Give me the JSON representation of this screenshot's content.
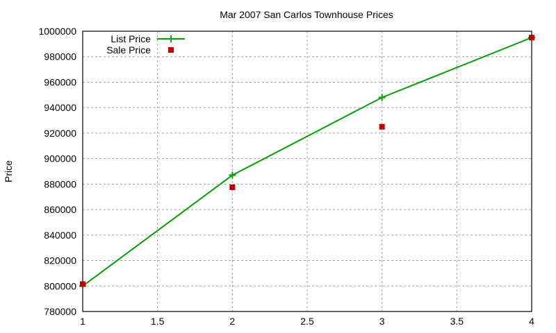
{
  "chart_data": {
    "type": "line",
    "title": "Mar 2007 San Carlos Townhouse Prices",
    "xlabel": "",
    "ylabel": "Price",
    "xlim": [
      1,
      4
    ],
    "ylim": [
      780000,
      1000000
    ],
    "x_ticks": [
      "1",
      "1.5",
      "2",
      "2.5",
      "3",
      "3.5",
      "4"
    ],
    "y_ticks": [
      "780000",
      "800000",
      "820000",
      "840000",
      "860000",
      "880000",
      "900000",
      "920000",
      "940000",
      "960000",
      "980000",
      "1000000"
    ],
    "grid": true,
    "legend_position": "top-left",
    "series": [
      {
        "name": "List Price",
        "style": "linespoints",
        "marker": "plus",
        "color": "#00a000",
        "x": [
          1,
          2,
          3,
          4
        ],
        "values": [
          800000,
          887000,
          948000,
          995000
        ]
      },
      {
        "name": "Sale Price",
        "style": "points",
        "marker": "square",
        "color": "#c00000",
        "x": [
          1,
          2,
          3,
          4
        ],
        "values": [
          801500,
          877500,
          925000,
          995000
        ]
      }
    ]
  }
}
